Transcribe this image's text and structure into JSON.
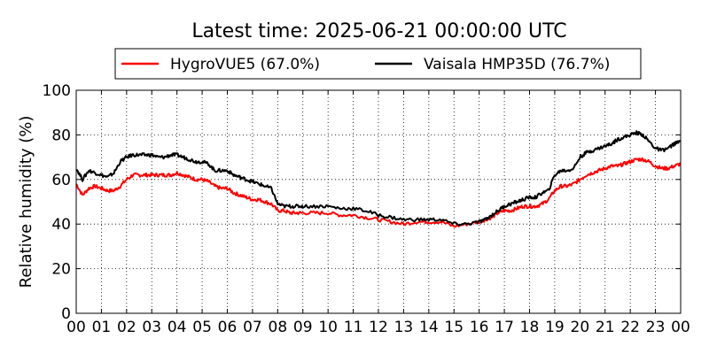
{
  "chart_data": {
    "type": "line",
    "title": "Latest time: 2025-06-21 00:00:00 UTC",
    "xlabel": "",
    "ylabel": "Relative humidity (%)",
    "xlim": [
      0,
      24
    ],
    "ylim": [
      0,
      100
    ],
    "x_ticks": [
      "00",
      "01",
      "02",
      "03",
      "04",
      "05",
      "06",
      "07",
      "08",
      "09",
      "10",
      "11",
      "12",
      "13",
      "14",
      "15",
      "16",
      "17",
      "18",
      "19",
      "20",
      "21",
      "22",
      "23",
      "00"
    ],
    "y_ticks": [
      0,
      20,
      40,
      60,
      80,
      100
    ],
    "grid": true,
    "legend_position": "top-center-outside",
    "series": [
      {
        "name": "HygroVUE5 (67.0%)",
        "color": "#ff0000",
        "x": [
          0,
          0.25,
          0.5,
          0.75,
          1,
          1.25,
          1.5,
          1.75,
          2,
          2.25,
          2.5,
          2.75,
          3,
          3.25,
          3.5,
          3.75,
          4,
          4.25,
          4.5,
          4.75,
          5,
          5.25,
          5.5,
          5.75,
          6,
          6.25,
          6.5,
          6.75,
          7,
          7.25,
          7.5,
          7.75,
          8,
          8.25,
          8.5,
          8.75,
          9,
          9.5,
          10,
          10.5,
          11,
          11.5,
          12,
          12.5,
          13,
          13.5,
          14,
          14.5,
          15,
          15.5,
          16,
          16.25,
          16.5,
          16.75,
          17,
          17.25,
          17.5,
          17.75,
          18,
          18.25,
          18.5,
          18.75,
          19,
          19.25,
          19.5,
          19.75,
          20,
          20.25,
          20.5,
          20.75,
          21,
          21.25,
          21.5,
          21.75,
          22,
          22.25,
          22.5,
          22.75,
          23,
          23.25,
          23.5,
          23.75,
          24
        ],
        "y": [
          58,
          53,
          56,
          57,
          56,
          55,
          55,
          57,
          60,
          62,
          62,
          62,
          62,
          62,
          62,
          62,
          63,
          62,
          61,
          60,
          60,
          59,
          57,
          56,
          56,
          54,
          53,
          52,
          51,
          51,
          50,
          49,
          46,
          46,
          45,
          45,
          45,
          45,
          45,
          44,
          44,
          43,
          42,
          41,
          40,
          41,
          41,
          41,
          39,
          40,
          41,
          42,
          43,
          45,
          46,
          46,
          47,
          48,
          48,
          48,
          49,
          51,
          55,
          57,
          57,
          58,
          60,
          62,
          63,
          64,
          65,
          66,
          66,
          67,
          68,
          69,
          69,
          68,
          66,
          65,
          65,
          66,
          67
        ]
      },
      {
        "name": "Vaisala HMP35D (76.7%)",
        "color": "#000000",
        "x": [
          0,
          0.25,
          0.5,
          0.75,
          1,
          1.25,
          1.5,
          1.75,
          2,
          2.25,
          2.5,
          2.75,
          3,
          3.25,
          3.5,
          3.75,
          4,
          4.25,
          4.5,
          4.75,
          5,
          5.25,
          5.5,
          5.75,
          6,
          6.25,
          6.5,
          6.75,
          7,
          7.25,
          7.5,
          7.75,
          8,
          8.25,
          8.5,
          8.75,
          9,
          9.5,
          10,
          10.5,
          11,
          11.5,
          12,
          12.5,
          13,
          13.5,
          14,
          14.5,
          15,
          15.5,
          16,
          16.25,
          16.5,
          16.75,
          17,
          17.25,
          17.5,
          17.75,
          18,
          18.25,
          18.5,
          18.75,
          19,
          19.25,
          19.5,
          19.75,
          20,
          20.25,
          20.5,
          20.75,
          21,
          21.25,
          21.5,
          21.75,
          22,
          22.25,
          22.5,
          22.75,
          23,
          23.25,
          23.5,
          23.75,
          24
        ],
        "y": [
          65,
          60,
          64,
          63,
          62,
          61,
          63,
          68,
          70,
          71,
          71,
          71,
          71,
          70,
          70,
          71,
          71,
          70,
          69,
          68,
          68,
          67,
          64,
          64,
          64,
          62,
          61,
          60,
          59,
          58,
          57,
          56,
          49,
          48,
          48,
          48,
          48,
          48,
          48,
          47,
          47,
          46,
          44,
          43,
          42,
          42,
          42,
          42,
          40,
          40,
          41,
          42,
          44,
          46,
          48,
          49,
          50,
          51,
          52,
          52,
          54,
          55,
          62,
          64,
          64,
          65,
          70,
          72,
          73,
          74,
          75,
          76,
          78,
          79,
          80,
          81,
          80,
          77,
          74,
          73,
          74,
          76,
          77
        ]
      }
    ]
  }
}
